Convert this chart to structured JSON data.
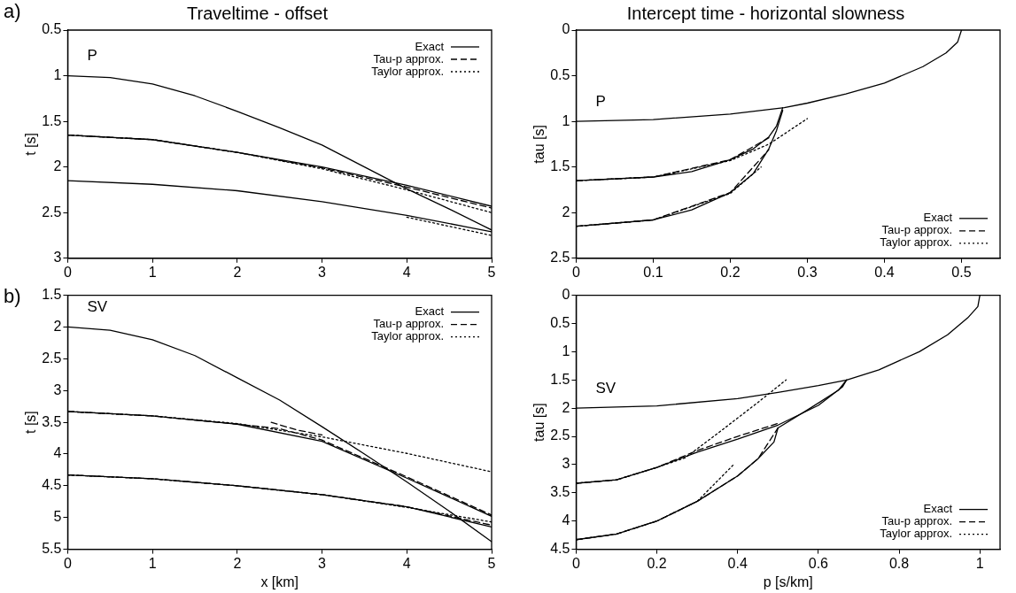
{
  "chart_data": [
    {
      "type": "line",
      "title": "Traveltime - offset",
      "ylabel": "t [s]",
      "xlim": [
        0,
        5
      ],
      "xticks": [
        0,
        1,
        2,
        3,
        4,
        5
      ],
      "ylim": [
        3,
        0.5
      ],
      "yticks": [
        0.5,
        1,
        1.5,
        2,
        2.5,
        3
      ],
      "legend": "top right",
      "grid": false,
      "marker": "none",
      "annotations": [
        "a)",
        "P"
      ],
      "series": [
        {
          "name": "Exact",
          "color": "#000000",
          "line_style": "solid",
          "x": [
            0,
            0.5,
            1,
            1.5,
            2,
            2.5,
            3,
            3.5,
            4,
            4.5,
            5
          ],
          "values": [
            1,
            1.02,
            1.09,
            1.22,
            1.39,
            1.57,
            1.76,
            2.0,
            2.24,
            2.46,
            2.69
          ]
        },
        {
          "color": "#000000",
          "line_style": "solid",
          "x": [
            0,
            1,
            2,
            3,
            4,
            5
          ],
          "values": [
            1.65,
            1.7,
            1.84,
            2.0,
            2.2,
            2.43
          ]
        },
        {
          "color": "#000000",
          "line_style": "solid",
          "x": [
            0,
            1,
            2,
            3,
            4,
            5
          ],
          "values": [
            2.15,
            2.19,
            2.26,
            2.38,
            2.53,
            2.71
          ]
        },
        {
          "name": "Tau-p approx.",
          "color": "#000000",
          "line_style": "dashed",
          "x": [
            0,
            1,
            2,
            3,
            4,
            5
          ],
          "values": [
            1.65,
            1.7,
            1.84,
            2.01,
            2.22,
            2.45
          ]
        },
        {
          "name": "Taylor approx.",
          "color": "#000000",
          "line_style": "dotted",
          "x": [
            0,
            1,
            2,
            3,
            4,
            5
          ],
          "values": [
            1.65,
            1.7,
            1.84,
            2.02,
            2.25,
            2.5
          ]
        },
        {
          "color": "#000000",
          "line_style": "dotted",
          "x": [
            4,
            4.5,
            5
          ],
          "values": [
            2.55,
            2.65,
            2.75
          ]
        }
      ]
    },
    {
      "type": "line",
      "title": "Intercept time - horizontal slowness",
      "ylabel": "tau [s]",
      "xlim": [
        0,
        0.55
      ],
      "xticks": [
        0,
        0.1,
        0.2,
        0.3,
        0.4,
        0.5
      ],
      "ylim": [
        2.5,
        0
      ],
      "yticks": [
        0,
        0.5,
        1,
        1.5,
        2,
        2.5
      ],
      "legend": "bottom right",
      "grid": false,
      "marker": "none",
      "annotations": [
        "P"
      ],
      "series": [
        {
          "name": "Exact",
          "color": "#000000",
          "line_style": "solid",
          "x": [
            0,
            0.1,
            0.2,
            0.27,
            0.3,
            0.35,
            0.4,
            0.45,
            0.48,
            0.495,
            0.5
          ],
          "values": [
            1,
            0.98,
            0.92,
            0.85,
            0.8,
            0.7,
            0.58,
            0.4,
            0.25,
            0.13,
            0
          ]
        },
        {
          "color": "#000000",
          "line_style": "solid",
          "x": [
            0,
            0.1,
            0.15,
            0.2,
            0.23,
            0.25,
            0.26,
            0.268
          ],
          "values": [
            1.65,
            1.61,
            1.55,
            1.42,
            1.3,
            1.17,
            1.05,
            0.85
          ]
        },
        {
          "color": "#000000",
          "line_style": "solid",
          "x": [
            0,
            0.1,
            0.15,
            0.2,
            0.23,
            0.25,
            0.26,
            0.268
          ],
          "values": [
            2.15,
            2.08,
            1.97,
            1.78,
            1.57,
            1.3,
            1.1,
            0.88
          ]
        },
        {
          "name": "Tau-p approx.",
          "color": "#000000",
          "line_style": "dashed",
          "x": [
            0,
            0.1,
            0.2,
            0.25
          ],
          "values": [
            1.65,
            1.61,
            1.42,
            1.18
          ]
        },
        {
          "color": "#000000",
          "line_style": "dashed",
          "x": [
            0,
            0.1,
            0.2,
            0.25
          ],
          "values": [
            2.15,
            2.08,
            1.78,
            1.31
          ]
        },
        {
          "name": "Taylor approx.",
          "color": "#000000",
          "line_style": "dotted",
          "x": [
            0,
            0.1,
            0.2,
            0.25,
            0.3
          ],
          "values": [
            1.65,
            1.61,
            1.43,
            1.25,
            0.97
          ]
        },
        {
          "color": "#000000",
          "line_style": "dotted",
          "x": [
            0,
            0.1,
            0.2,
            0.24
          ],
          "values": [
            2.15,
            2.08,
            1.79,
            1.5
          ]
        }
      ]
    },
    {
      "type": "line",
      "xlabel": "x [km]",
      "ylabel": "t [s]",
      "xlim": [
        0,
        5
      ],
      "xticks": [
        0,
        1,
        2,
        3,
        4,
        5
      ],
      "ylim": [
        5.5,
        1.5
      ],
      "yticks": [
        1.5,
        2,
        2.5,
        3,
        3.5,
        4,
        4.5,
        5,
        5.5
      ],
      "legend": "top right",
      "grid": false,
      "marker": "none",
      "annotations": [
        "b)",
        "SV"
      ],
      "series": [
        {
          "name": "Exact",
          "color": "#000000",
          "line_style": "solid",
          "x": [
            0,
            0.5,
            1,
            1.5,
            2,
            2.5,
            3,
            3.5,
            4,
            4.5,
            5
          ],
          "values": [
            2.0,
            2.05,
            2.2,
            2.45,
            2.8,
            3.15,
            3.57,
            4.0,
            4.44,
            4.9,
            5.38
          ]
        },
        {
          "color": "#000000",
          "line_style": "solid",
          "x": [
            0,
            1,
            2,
            3,
            4,
            5
          ],
          "values": [
            3.33,
            3.4,
            3.53,
            3.8,
            4.38,
            4.98
          ]
        },
        {
          "color": "#000000",
          "line_style": "solid",
          "x": [
            0,
            1,
            2,
            3,
            4,
            5
          ],
          "values": [
            4.33,
            4.39,
            4.5,
            4.64,
            4.83,
            5.15
          ]
        },
        {
          "name": "Tau-p approx.",
          "color": "#000000",
          "line_style": "dashed",
          "x": [
            0,
            1,
            2,
            2.5,
            3,
            4,
            5
          ],
          "values": [
            3.33,
            3.4,
            3.53,
            3.6,
            3.78,
            4.36,
            4.96
          ]
        },
        {
          "color": "#000000",
          "line_style": "dashed",
          "x": [
            2.4,
            2.7,
            3.0
          ],
          "values": [
            3.5,
            3.62,
            3.7
          ]
        },
        {
          "color": "#000000",
          "line_style": "dashed",
          "x": [
            0,
            1,
            2,
            3,
            4,
            5
          ],
          "values": [
            4.33,
            4.39,
            4.5,
            4.64,
            4.83,
            5.12
          ]
        },
        {
          "name": "Taylor approx.",
          "color": "#000000",
          "line_style": "dotted",
          "x": [
            0,
            1,
            2,
            3,
            4,
            5
          ],
          "values": [
            3.33,
            3.4,
            3.52,
            3.73,
            3.99,
            4.28
          ]
        },
        {
          "color": "#000000",
          "line_style": "dotted",
          "x": [
            0,
            1,
            2,
            3,
            4,
            5
          ],
          "values": [
            4.33,
            4.39,
            4.5,
            4.64,
            4.84,
            5.07
          ]
        }
      ]
    },
    {
      "type": "line",
      "xlabel": "p [s/km]",
      "ylabel": "tau [s]",
      "xlim": [
        0,
        1.05
      ],
      "xticks": [
        0,
        0.2,
        0.4,
        0.6,
        0.8,
        1
      ],
      "ylim": [
        4.5,
        0
      ],
      "yticks": [
        0,
        0.5,
        1,
        1.5,
        2,
        2.5,
        3,
        3.5,
        4,
        4.5
      ],
      "legend": "bottom right",
      "grid": false,
      "marker": "none",
      "annotations": [
        "SV"
      ],
      "series": [
        {
          "name": "Exact",
          "color": "#000000",
          "line_style": "solid",
          "x": [
            0,
            0.2,
            0.4,
            0.5,
            0.6,
            0.67,
            0.75,
            0.85,
            0.92,
            0.97,
            0.995,
            1.0
          ],
          "values": [
            2.0,
            1.96,
            1.83,
            1.72,
            1.6,
            1.5,
            1.32,
            1.0,
            0.7,
            0.4,
            0.2,
            0
          ]
        },
        {
          "color": "#000000",
          "line_style": "solid",
          "x": [
            0,
            0.1,
            0.2,
            0.3,
            0.4,
            0.5,
            0.6,
            0.66,
            0.67
          ],
          "values": [
            3.33,
            3.27,
            3.05,
            2.78,
            2.55,
            2.3,
            1.95,
            1.62,
            1.5
          ]
        },
        {
          "color": "#000000",
          "line_style": "solid",
          "x": [
            0,
            0.1,
            0.2,
            0.3,
            0.4,
            0.45,
            0.49,
            0.5,
            0.58,
            0.65,
            0.67
          ],
          "values": [
            4.33,
            4.23,
            4.0,
            3.65,
            3.2,
            2.9,
            2.6,
            2.35,
            2.0,
            1.68,
            1.5
          ]
        },
        {
          "name": "Tau-p approx.",
          "color": "#000000",
          "line_style": "dashed",
          "x": [
            0,
            0.1,
            0.2,
            0.3,
            0.4,
            0.5
          ],
          "values": [
            3.33,
            3.27,
            3.05,
            2.75,
            2.5,
            2.27
          ]
        },
        {
          "color": "#000000",
          "line_style": "dashed",
          "x": [
            0,
            0.1,
            0.2,
            0.3,
            0.4,
            0.45,
            0.5
          ],
          "values": [
            4.33,
            4.23,
            4.0,
            3.65,
            3.2,
            2.9,
            2.35
          ]
        },
        {
          "name": "Taylor approx.",
          "color": "#000000",
          "line_style": "dotted",
          "x": [
            0,
            0.1,
            0.2,
            0.27,
            0.35,
            0.45,
            0.52
          ],
          "values": [
            3.33,
            3.27,
            3.05,
            2.88,
            2.45,
            1.9,
            1.5
          ]
        },
        {
          "color": "#000000",
          "line_style": "dotted",
          "x": [
            0,
            0.1,
            0.2,
            0.3,
            0.39
          ],
          "values": [
            4.33,
            4.23,
            4.0,
            3.65,
            3.0
          ]
        }
      ]
    }
  ]
}
